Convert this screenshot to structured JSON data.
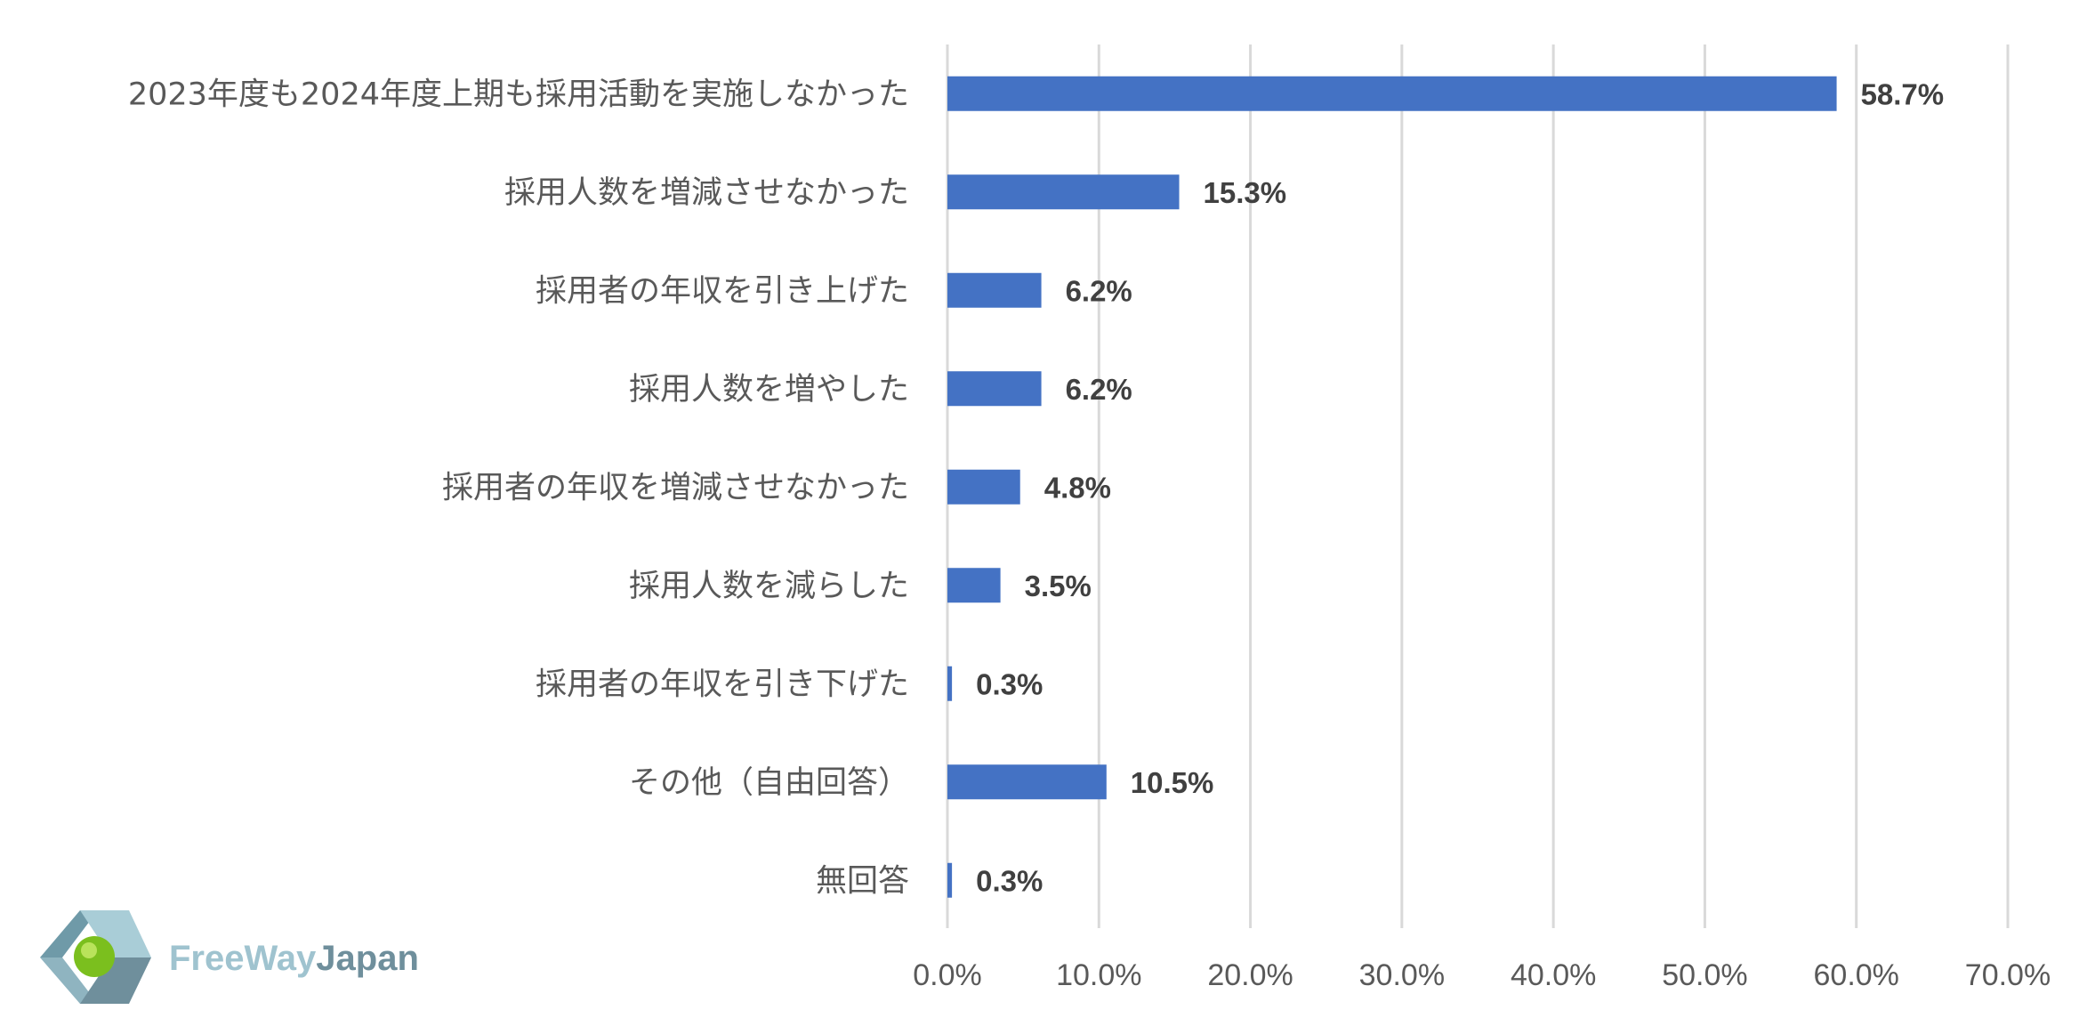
{
  "chart_data": {
    "type": "bar",
    "orientation": "horizontal",
    "categories": [
      "2023年度も2024年度上期も採用活動を実施しなかった",
      "採用人数を増減させなかった",
      "採用者の年収を引き上げた",
      "採用人数を増やした",
      "採用者の年収を増減させなかった",
      "採用人数を減らした",
      "採用者の年収を引き下げた",
      "その他（自由回答）",
      "無回答"
    ],
    "values": [
      58.7,
      15.3,
      6.2,
      6.2,
      4.8,
      3.5,
      0.3,
      10.5,
      0.3
    ],
    "value_labels": [
      "58.7%",
      "15.3%",
      "6.2%",
      "6.2%",
      "4.8%",
      "3.5%",
      "0.3%",
      "10.5%",
      "0.3%"
    ],
    "xlim": [
      0,
      70
    ],
    "x_ticks": [
      "0.0%",
      "10.0%",
      "20.0%",
      "30.0%",
      "40.0%",
      "50.0%",
      "60.0%",
      "70.0%"
    ],
    "grid": true,
    "bar_color": "#4472C4"
  },
  "logo": {
    "word1": "FreeWay",
    "word2": "Japan",
    "colors": {
      "word1": "#9fc3cf",
      "word2": "#6f8f9c",
      "sphere": "#7bbf1e"
    }
  }
}
